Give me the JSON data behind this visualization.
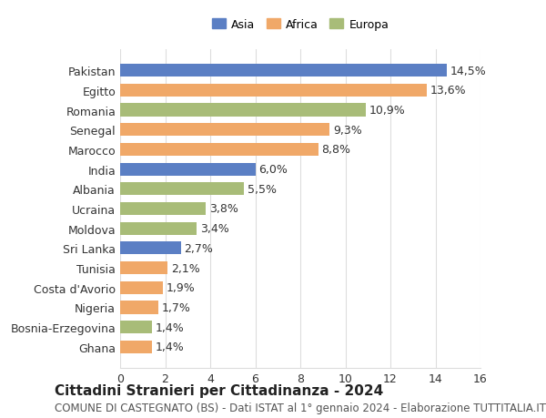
{
  "countries": [
    "Pakistan",
    "Egitto",
    "Romania",
    "Senegal",
    "Marocco",
    "India",
    "Albania",
    "Ucraina",
    "Moldova",
    "Sri Lanka",
    "Tunisia",
    "Costa d'Avorio",
    "Nigeria",
    "Bosnia-Erzegovina",
    "Ghana"
  ],
  "values": [
    14.5,
    13.6,
    10.9,
    9.3,
    8.8,
    6.0,
    5.5,
    3.8,
    3.4,
    2.7,
    2.1,
    1.9,
    1.7,
    1.4,
    1.4
  ],
  "labels": [
    "14,5%",
    "13,6%",
    "10,9%",
    "9,3%",
    "8,8%",
    "6,0%",
    "5,5%",
    "3,8%",
    "3,4%",
    "2,7%",
    "2,1%",
    "1,9%",
    "1,7%",
    "1,4%",
    "1,4%"
  ],
  "continents": [
    "Asia",
    "Africa",
    "Europa",
    "Africa",
    "Africa",
    "Asia",
    "Europa",
    "Europa",
    "Europa",
    "Asia",
    "Africa",
    "Africa",
    "Africa",
    "Europa",
    "Africa"
  ],
  "colors": {
    "Asia": "#5b7fc4",
    "Africa": "#f0a868",
    "Europa": "#a8bc78"
  },
  "legend_labels": [
    "Asia",
    "Africa",
    "Europa"
  ],
  "xlim": [
    0,
    16
  ],
  "xticks": [
    0,
    2,
    4,
    6,
    8,
    10,
    12,
    14,
    16
  ],
  "title": "Cittadini Stranieri per Cittadinanza - 2024",
  "subtitle": "COMUNE DI CASTEGNATO (BS) - Dati ISTAT al 1° gennaio 2024 - Elaborazione TUTTITALIA.IT",
  "background_color": "#ffffff",
  "grid_color": "#dddddd",
  "bar_height": 0.65,
  "label_fontsize": 9,
  "tick_fontsize": 9,
  "title_fontsize": 11,
  "subtitle_fontsize": 8.5
}
